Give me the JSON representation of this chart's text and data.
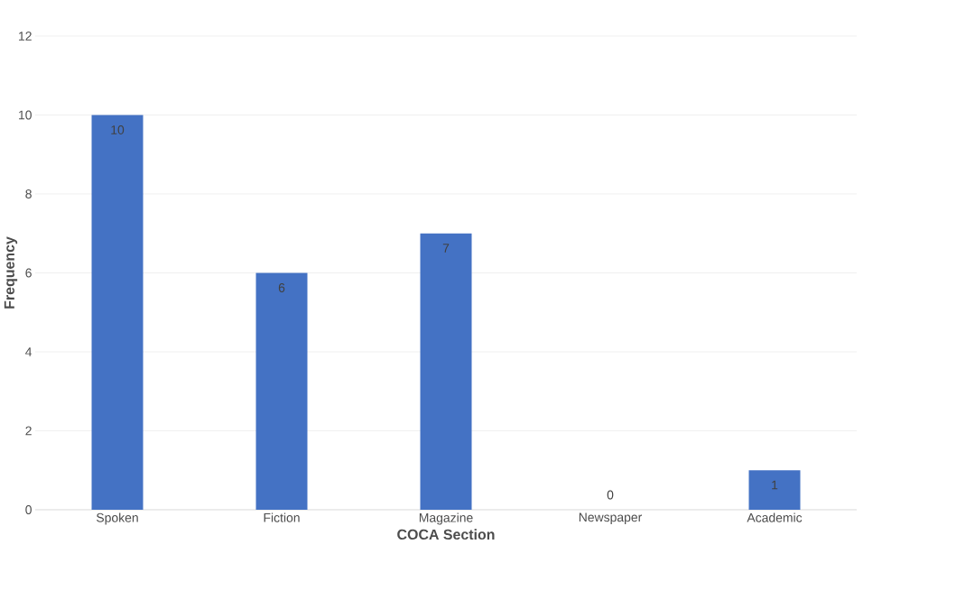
{
  "chart_data": {
    "type": "bar",
    "xlabel": "COCA Section",
    "ylabel": "Frequency",
    "categories": [
      "Spoken",
      "Fiction",
      "Magazine",
      "Newspaper",
      "Academic"
    ],
    "values": [
      10,
      6,
      7,
      0,
      1
    ],
    "color": "#4472c4",
    "ylim": [
      0,
      12
    ],
    "yticks": [
      0,
      2,
      4,
      6,
      8,
      10,
      12
    ],
    "grid": "y",
    "data_labels": true
  }
}
